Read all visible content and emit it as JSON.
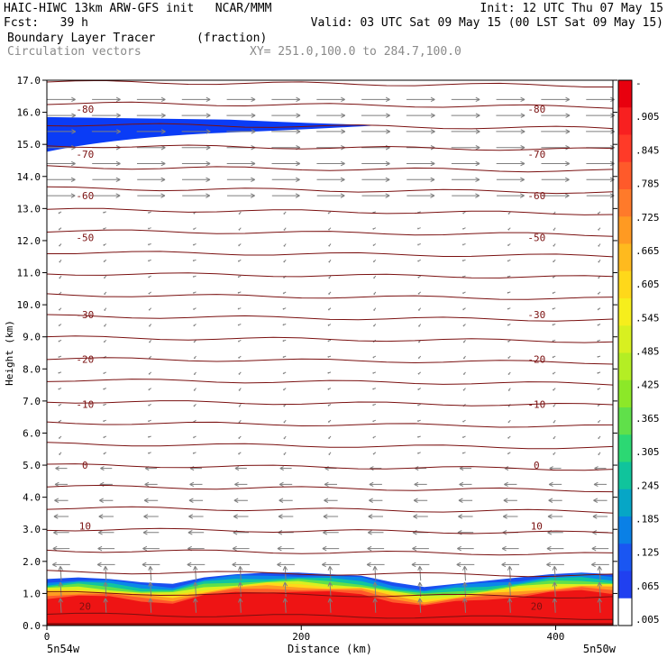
{
  "header": {
    "line1_left": "HAIC-HIWC 13km ARW-GFS init   NCAR/MMM",
    "line1_right": "Init: 12 UTC Thu 07 May 15",
    "line2_left": "Fcst:   39 h",
    "line2_right": "Valid: 03 UTC Sat 09 May 15 (00 LST Sat 09 May 15)",
    "field_name": "Boundary Layer Tracer",
    "field_units": "(fraction)",
    "vector_label": "Circulation vectors",
    "xy_label": "XY= 251.0,100.0 to 284.7,100.0"
  },
  "colors": {
    "contour": "#7a1010",
    "vector": "#7f7f7f",
    "frame": "#000000"
  },
  "chart_data": {
    "type": "heatmap",
    "title": "Boundary Layer Tracer",
    "xlabel": "Distance (km)",
    "ylabel": "Height (km)",
    "xlim": [
      0,
      445
    ],
    "ylim": [
      0,
      17
    ],
    "y_ticks": [
      "0.0",
      "1.0",
      "2.0",
      "3.0",
      "4.0",
      "5.0",
      "6.0",
      "7.0",
      "8.0",
      "9.0",
      "10.0",
      "11.0",
      "12.0",
      "13.0",
      "14.0",
      "15.0",
      "16.0",
      "17.0"
    ],
    "x_ticks": [
      "0",
      "200",
      "400"
    ],
    "x_tick_values": [
      0,
      200,
      400
    ],
    "endpoint_labels": {
      "left": "5n54w",
      "right": "5n50w"
    },
    "colorbar": {
      "labels": [
        "-",
        ".905",
        ".845",
        ".785",
        ".725",
        ".665",
        ".605",
        ".545",
        ".485",
        ".425",
        ".365",
        ".305",
        ".245",
        ".185",
        ".125",
        ".065",
        ".005"
      ],
      "colors": [
        "#e8000e",
        "#f82020",
        "#ff3a28",
        "#ff5a2a",
        "#ff7a2a",
        "#ff9a22",
        "#ffba1e",
        "#ffd81a",
        "#f6ee1c",
        "#d8f020",
        "#b4ee24",
        "#8ce828",
        "#60e04a",
        "#2cd873",
        "#10c49c",
        "#06a6c6",
        "#0a80e6",
        "#1a56f2",
        "#2040f0",
        "#ffffff"
      ]
    },
    "temperature_contours": [
      {
        "label": "-80",
        "height_km": 16.1
      },
      {
        "label": "-70",
        "height_km": 14.7
      },
      {
        "label": "-60",
        "height_km": 13.4
      },
      {
        "label": "-50",
        "height_km": 12.1
      },
      {
        "label": "-30",
        "height_km": 9.7
      },
      {
        "label": "-20",
        "height_km": 8.3
      },
      {
        "label": "-10",
        "height_km": 6.9
      },
      {
        "label": "0",
        "height_km": 5.0
      },
      {
        "label": "10",
        "height_km": 3.1
      },
      {
        "label": "20",
        "height_km": 0.6
      }
    ],
    "tracer_boundary_layer_top_km": [
      1.45,
      1.5,
      1.45,
      1.35,
      1.3,
      1.5,
      1.6,
      1.65,
      1.65,
      1.6,
      1.55,
      1.35,
      1.2,
      1.3,
      1.4,
      1.5,
      1.6,
      1.65,
      1.6
    ],
    "tracer_upper_layer": {
      "x_start_km": 0,
      "x_end_km": 262,
      "height_km": 15.55,
      "thickness_km": 1.0
    }
  }
}
